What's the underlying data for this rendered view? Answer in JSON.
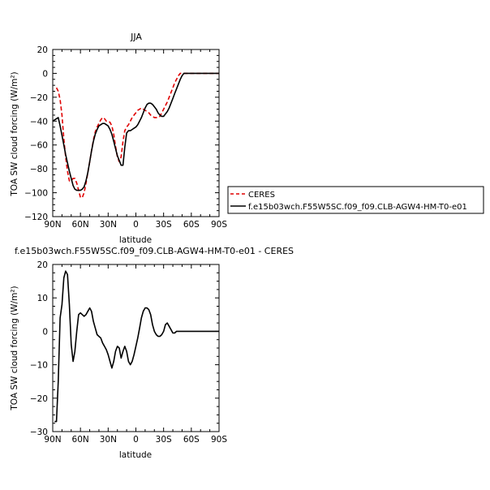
{
  "chart_data": [
    {
      "type": "line",
      "title": "JJA",
      "xlabel": "latitude",
      "ylabel": "TOA SW cloud forcing (W/m²)",
      "xlim": [
        90,
        -90
      ],
      "ylim": [
        -120,
        20
      ],
      "x_ticks": [
        90,
        60,
        30,
        0,
        -30,
        -60,
        -90
      ],
      "x_tick_labels": [
        "90N",
        "60N",
        "30N",
        "0",
        "30S",
        "60S",
        "90S"
      ],
      "y_ticks": [
        -120,
        -100,
        -80,
        -60,
        -40,
        -20,
        0,
        20
      ],
      "y_tick_labels": [
        "−120",
        "−100",
        "−80",
        "−60",
        "−40",
        "−20",
        "0",
        "20"
      ],
      "legend_position": "right",
      "series": [
        {
          "name": "CERES",
          "color": "#e00000",
          "style": "dashed",
          "x": [
            86,
            84,
            82,
            80,
            78,
            76,
            74,
            72,
            70,
            68,
            66,
            64,
            62,
            60,
            58,
            56,
            54,
            52,
            50,
            48,
            46,
            44,
            42,
            40,
            38,
            36,
            34,
            32,
            30,
            28,
            26,
            24,
            22,
            20,
            18,
            16,
            14,
            12,
            10,
            8,
            6,
            4,
            2,
            0,
            -2,
            -4,
            -6,
            -8,
            -10,
            -12,
            -14,
            -16,
            -18,
            -20,
            -22,
            -24,
            -26,
            -28,
            -30,
            -32,
            -34,
            -36,
            -38,
            -40,
            -42,
            -44,
            -46,
            -48,
            -50,
            -52,
            -54,
            -56,
            -58,
            -60,
            -62,
            -64,
            -66,
            -68,
            -70,
            -72,
            -74,
            -76,
            -78,
            -80,
            -82,
            -84,
            -86,
            -88,
            -90
          ],
          "y": [
            -12,
            -15,
            -22,
            -35,
            -55,
            -70,
            -82,
            -90,
            -90,
            -88,
            -88,
            -92,
            -98,
            -104,
            -104,
            -100,
            -92,
            -83,
            -74,
            -65,
            -56,
            -49,
            -45,
            -42,
            -39,
            -37,
            -38,
            -40,
            -40,
            -41,
            -44,
            -51,
            -61,
            -70,
            -74,
            -70,
            -57,
            -48,
            -45,
            -43,
            -40,
            -37,
            -35,
            -33,
            -31,
            -30,
            -29,
            -30,
            -31,
            -32,
            -33,
            -35,
            -36,
            -37,
            -37,
            -37,
            -36,
            -33,
            -30,
            -27,
            -24,
            -20,
            -16,
            -12,
            -8,
            -5,
            -2,
            0,
            0,
            0,
            0,
            0,
            0,
            0,
            0,
            0,
            0,
            0,
            0,
            0,
            0,
            0,
            0,
            0,
            0,
            0,
            0,
            0,
            0
          ]
        },
        {
          "name": "f.e15b03wch.F55W5SC.f09_f09.CLB-AGW4-HM-T0-e01",
          "color": "#000000",
          "style": "solid",
          "x": [
            90,
            88,
            86,
            84,
            82,
            80,
            78,
            76,
            74,
            72,
            70,
            68,
            66,
            64,
            62,
            60,
            58,
            56,
            54,
            52,
            50,
            48,
            46,
            44,
            42,
            40,
            38,
            36,
            34,
            32,
            30,
            28,
            26,
            24,
            22,
            20,
            18,
            16,
            14,
            12,
            10,
            8,
            6,
            4,
            2,
            0,
            -2,
            -4,
            -6,
            -8,
            -10,
            -12,
            -14,
            -16,
            -18,
            -20,
            -22,
            -24,
            -26,
            -28,
            -30,
            -32,
            -34,
            -36,
            -38,
            -40,
            -42,
            -44,
            -46,
            -48,
            -50,
            -52,
            -54,
            -56,
            -58,
            -60,
            -62,
            -64,
            -66,
            -68,
            -70,
            -72,
            -74,
            -76,
            -78,
            -80,
            -82,
            -84,
            -86,
            -88,
            -90
          ],
          "y": [
            -40,
            -39,
            -38,
            -37,
            -44,
            -52,
            -60,
            -68,
            -75,
            -82,
            -88,
            -94,
            -97,
            -98,
            -98,
            -98,
            -97,
            -95,
            -90,
            -83,
            -74,
            -65,
            -57,
            -51,
            -47,
            -44,
            -43,
            -42,
            -42,
            -43,
            -44,
            -47,
            -51,
            -57,
            -63,
            -69,
            -73,
            -77,
            -77,
            -62,
            -50,
            -48,
            -48,
            -47,
            -46,
            -45,
            -43,
            -40,
            -37,
            -33,
            -29,
            -26,
            -25,
            -25,
            -26,
            -28,
            -30,
            -33,
            -35,
            -36,
            -36,
            -34,
            -32,
            -29,
            -25,
            -21,
            -17,
            -13,
            -9,
            -5,
            -2,
            0,
            0,
            0,
            0,
            0,
            0,
            0,
            0,
            0,
            0,
            0,
            0,
            0,
            0,
            0,
            0,
            0,
            0,
            0,
            0
          ]
        }
      ]
    },
    {
      "type": "line",
      "title": "f.e15b03wch.F55W5SC.f09_f09.CLB-AGW4-HM-T0-e01 - CERES",
      "xlabel": "latitude",
      "ylabel": "TOA SW cloud forcing (W/m²)",
      "xlim": [
        90,
        -90
      ],
      "ylim": [
        -30,
        20
      ],
      "x_ticks": [
        90,
        60,
        30,
        0,
        -30,
        -60,
        -90
      ],
      "x_tick_labels": [
        "90N",
        "60N",
        "30N",
        "0",
        "30S",
        "60S",
        "90S"
      ],
      "y_ticks": [
        -30,
        -20,
        -10,
        0,
        10,
        20
      ],
      "y_tick_labels": [
        "−30",
        "−20",
        "−10",
        "0",
        "10",
        "20"
      ],
      "series": [
        {
          "color": "#000000",
          "style": "solid",
          "x": [
            88,
            86,
            84,
            82,
            80,
            78,
            76,
            74,
            72,
            70,
            68,
            66,
            64,
            62,
            60,
            58,
            56,
            54,
            52,
            50,
            48,
            46,
            44,
            42,
            40,
            38,
            36,
            34,
            32,
            30,
            28,
            26,
            24,
            22,
            20,
            18,
            16,
            14,
            12,
            10,
            8,
            6,
            4,
            2,
            0,
            -2,
            -4,
            -6,
            -8,
            -10,
            -12,
            -14,
            -16,
            -18,
            -20,
            -22,
            -24,
            -26,
            -28,
            -30,
            -32,
            -34,
            -36,
            -38,
            -40,
            -42,
            -44,
            -46,
            -48,
            -50,
            -52,
            -54,
            -56,
            -58,
            -60,
            -62,
            -64,
            -66,
            -68,
            -70,
            -72,
            -74,
            -76,
            -78,
            -80,
            -82,
            -84,
            -86,
            -88,
            -90
          ],
          "y": [
            -27,
            -27,
            -15,
            4,
            8,
            16,
            18,
            17,
            8,
            -4,
            -9,
            -6,
            0,
            5,
            5.5,
            5,
            4.5,
            5,
            6,
            7,
            6,
            3,
            1,
            -1,
            -1.5,
            -2,
            -3.5,
            -4.5,
            -5.5,
            -7,
            -9,
            -11,
            -9,
            -6,
            -4.5,
            -5,
            -8,
            -6,
            -4.5,
            -6,
            -9,
            -10,
            -9,
            -7,
            -4.5,
            -2,
            1,
            4,
            6,
            7,
            7,
            6.5,
            5,
            2,
            0,
            -1,
            -1.5,
            -1.5,
            -1,
            0,
            2,
            2.5,
            1.5,
            0.5,
            -0.5,
            -0.5,
            0,
            0,
            0,
            0,
            0,
            0,
            0,
            0,
            0,
            0,
            0,
            0,
            0,
            0,
            0,
            0,
            0,
            0,
            0,
            0,
            0,
            0,
            0,
            0
          ]
        }
      ]
    }
  ]
}
